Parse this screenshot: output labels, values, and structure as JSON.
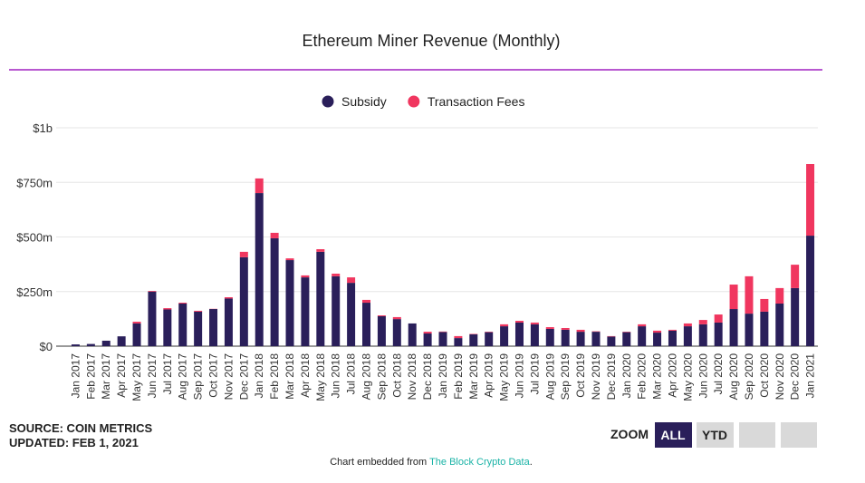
{
  "chart_data": {
    "type": "stacked_bar",
    "title": "Ethereum Miner Revenue (Monthly)",
    "categories": [
      "Jan 2017",
      "Feb 2017",
      "Mar 2017",
      "Apr 2017",
      "May 2017",
      "Jun 2017",
      "Jul 2017",
      "Aug 2017",
      "Sep 2017",
      "Oct 2017",
      "Nov 2017",
      "Dec 2017",
      "Jan 2018",
      "Feb 2018",
      "Mar 2018",
      "Apr 2018",
      "May 2018",
      "Jun 2018",
      "Jul 2018",
      "Aug 2018",
      "Sep 2018",
      "Oct 2018",
      "Nov 2018",
      "Dec 2018",
      "Jan 2019",
      "Feb 2019",
      "Mar 2019",
      "Apr 2019",
      "May 2019",
      "Jun 2019",
      "Jul 2019",
      "Aug 2019",
      "Sep 2019",
      "Oct 2019",
      "Nov 2019",
      "Dec 2019",
      "Jan 2020",
      "Feb 2020",
      "Mar 2020",
      "Apr 2020",
      "May 2020",
      "Jun 2020",
      "Jul 2020",
      "Aug 2020",
      "Sep 2020",
      "Oct 2020",
      "Nov 2020",
      "Dec 2020",
      "Jan 2021"
    ],
    "series": [
      {
        "name": "Subsidy",
        "color": "#2a1f5a",
        "values": [
          8,
          10,
          25,
          45,
          104,
          250,
          168,
          195,
          158,
          170,
          218,
          407,
          701,
          494,
          394,
          315,
          432,
          320,
          290,
          199,
          137,
          124,
          104,
          58,
          65,
          37,
          54,
          64,
          91,
          108,
          100,
          79,
          75,
          66,
          66,
          44,
          64,
          91,
          62,
          71,
          91,
          100,
          108,
          170,
          149,
          158,
          195,
          266,
          506
        ]
      },
      {
        "name": "Transaction Fees",
        "color": "#f0365f",
        "values": [
          0,
          0,
          0,
          0,
          8,
          3,
          6,
          4,
          4,
          1,
          6,
          25,
          67,
          25,
          8,
          9,
          12,
          12,
          25,
          13,
          4,
          9,
          0,
          8,
          2,
          9,
          2,
          2,
          9,
          8,
          8,
          8,
          8,
          9,
          2,
          2,
          2,
          9,
          9,
          4,
          13,
          20,
          37,
          112,
          171,
          58,
          71,
          107,
          328
        ]
      }
    ],
    "ylim": [
      0,
      1000
    ],
    "yticks": [
      {
        "value": 0,
        "label": "$0"
      },
      {
        "value": 250,
        "label": "$250m"
      },
      {
        "value": 500,
        "label": "$500m"
      },
      {
        "value": 750,
        "label": "$750m"
      },
      {
        "value": 1000,
        "label": "$1b"
      }
    ],
    "grid": true,
    "legend": "top",
    "source": "SOURCE: COIN METRICS",
    "updated": "UPDATED: FEB 1, 2021",
    "zoom_label": "ZOOM",
    "zoom_buttons": [
      "ALL",
      "YTD"
    ],
    "footer": "Chart embedded from",
    "footer_link": "The Block Crypto Data",
    "footer_end": "."
  }
}
